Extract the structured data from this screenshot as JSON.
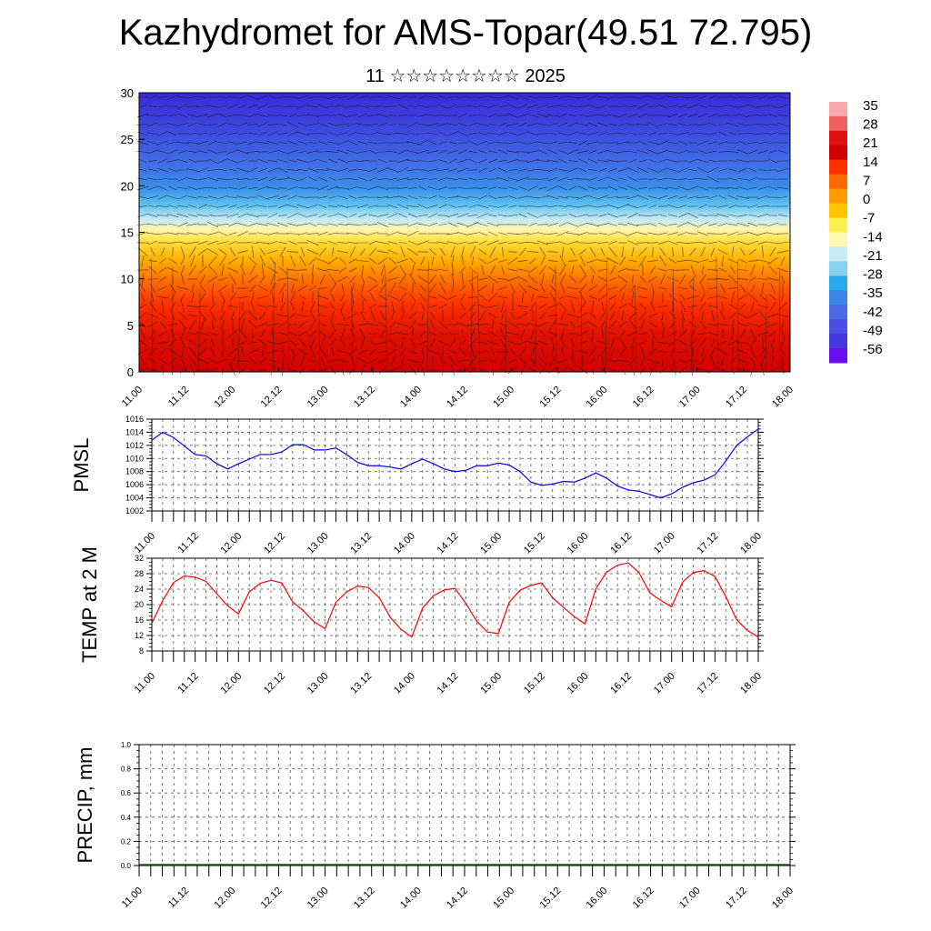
{
  "title": "Kazhydromet for AMS-Topar(49.51 72.795)",
  "subtitle": "11 ☆☆☆☆☆☆☆☆ 2025",
  "colors": {
    "pmsl_line": "#0000ff",
    "temp_line": "#ff0000",
    "precip_line": "#006400"
  },
  "chart_data": [
    {
      "type": "heatmap",
      "name": "temperature cross-section with wind vectors",
      "x_tick_labels": [
        "11.00",
        "11.12",
        "12.00",
        "12.12",
        "13.00",
        "13.12",
        "14.00",
        "14.12",
        "15.00",
        "15.12",
        "16.00",
        "16.12",
        "17.00",
        "17.12",
        "18.00"
      ],
      "y_ticks": [
        0,
        5,
        10,
        15,
        20,
        25,
        30
      ],
      "ylim": [
        0,
        30
      ],
      "colorbar_labels": [
        "35",
        "28",
        "21",
        "14",
        "7",
        "0",
        "-7",
        "-14",
        "-21",
        "-28",
        "-35",
        "-42",
        "-49",
        "-56"
      ],
      "colorbar_colors": [
        "#f7a8a8",
        "#f06060",
        "#e01010",
        "#d20000",
        "#ff3000",
        "#ff6a00",
        "#ff9a00",
        "#ffc400",
        "#ffee50",
        "#fff8b0",
        "#c8ecf6",
        "#88d2f0",
        "#2aaaee",
        "#3a86e6",
        "#4b6be6",
        "#4a50e4",
        "#4438dc",
        "#6a10ee"
      ],
      "gradient_stops": [
        {
          "offset": 0,
          "color": "#d20000"
        },
        {
          "offset": 0.13,
          "color": "#e01000"
        },
        {
          "offset": 0.24,
          "color": "#ff3000"
        },
        {
          "offset": 0.33,
          "color": "#ff7000"
        },
        {
          "offset": 0.4,
          "color": "#ffae00"
        },
        {
          "offset": 0.47,
          "color": "#ffe040"
        },
        {
          "offset": 0.51,
          "color": "#fff6b0"
        },
        {
          "offset": 0.55,
          "color": "#bfe8f6"
        },
        {
          "offset": 0.6,
          "color": "#5cc0f0"
        },
        {
          "offset": 0.66,
          "color": "#3a8ee8"
        },
        {
          "offset": 0.74,
          "color": "#4070e6"
        },
        {
          "offset": 0.85,
          "color": "#3e4ee0"
        },
        {
          "offset": 1,
          "color": "#3a2ad8"
        }
      ]
    },
    {
      "type": "line",
      "ylabel": "PMSL",
      "ylim": [
        1002,
        1016
      ],
      "y_ticks": [
        1002,
        1004,
        1006,
        1008,
        1010,
        1012,
        1014,
        1016
      ],
      "x_tick_labels": [
        "11.00",
        "11.12",
        "12.00",
        "12.12",
        "13.00",
        "13.12",
        "14.00",
        "14.12",
        "15.00",
        "15.12",
        "16.00",
        "16.12",
        "17.00",
        "17.12",
        "18.00"
      ],
      "x_step_hours": 3,
      "values": [
        1012.8,
        1014,
        1013.2,
        1011.9,
        1010.6,
        1010.4,
        1009.2,
        1008.4,
        1009.2,
        1009.9,
        1010.6,
        1010.6,
        1011,
        1012.1,
        1012.1,
        1011.3,
        1011.3,
        1011.6,
        1010.6,
        1009.4,
        1008.9,
        1008.9,
        1008.7,
        1008.4,
        1009.2,
        1009.9,
        1009.2,
        1008.4,
        1008,
        1008.2,
        1008.9,
        1008.9,
        1009.3,
        1009,
        1008,
        1006.4,
        1005.9,
        1006.1,
        1006.5,
        1006.4,
        1007,
        1007.8,
        1007,
        1005.8,
        1005.2,
        1005,
        1004.5,
        1004,
        1004.6,
        1005.6,
        1006.3,
        1006.7,
        1007.5,
        1009.6,
        1012,
        1013.3,
        1014.5
      ]
    },
    {
      "type": "line",
      "ylabel": "TEMP at 2 M",
      "ylim": [
        8,
        32
      ],
      "y_ticks": [
        8,
        12,
        16,
        20,
        24,
        28,
        32
      ],
      "x_tick_labels": [
        "11.00",
        "11.12",
        "12.00",
        "12.12",
        "13.00",
        "13.12",
        "14.00",
        "14.12",
        "15.00",
        "15.12",
        "16.00",
        "16.12",
        "17.00",
        "17.12",
        "18.00"
      ],
      "x_step_hours": 3,
      "values": [
        15.2,
        21,
        25.7,
        27.4,
        27.1,
        26,
        22.8,
        19.7,
        17.6,
        23.3,
        25.5,
        26.3,
        25.6,
        20.7,
        18.4,
        15.5,
        13.8,
        20.6,
        23.3,
        24.8,
        24.4,
        21.8,
        16.8,
        13.6,
        11.6,
        19.1,
        22.3,
        23.8,
        24.2,
        20.3,
        15.7,
        12.9,
        12.5,
        20.6,
        23.7,
        25,
        25.6,
        21.8,
        19.3,
        16.9,
        15,
        24.1,
        28.4,
        30.2,
        30.8,
        28.2,
        23,
        21.1,
        19.4,
        25.8,
        28.3,
        28.8,
        27.3,
        22.1,
        16.1,
        13.3,
        11.6
      ]
    },
    {
      "type": "line",
      "ylabel": "PRECIP, mm",
      "ylim": [
        0,
        1
      ],
      "y_ticks": [
        "0.0",
        "0.2",
        "0.4",
        "0.6",
        "0.8",
        "1.0"
      ],
      "x_tick_labels": [
        "11.00",
        "11.12",
        "12.00",
        "12.12",
        "13.00",
        "13.12",
        "14.00",
        "14.12",
        "15.00",
        "15.12",
        "16.00",
        "16.12",
        "17.00",
        "17.12",
        "18.00"
      ],
      "values": [
        0,
        0
      ]
    }
  ]
}
